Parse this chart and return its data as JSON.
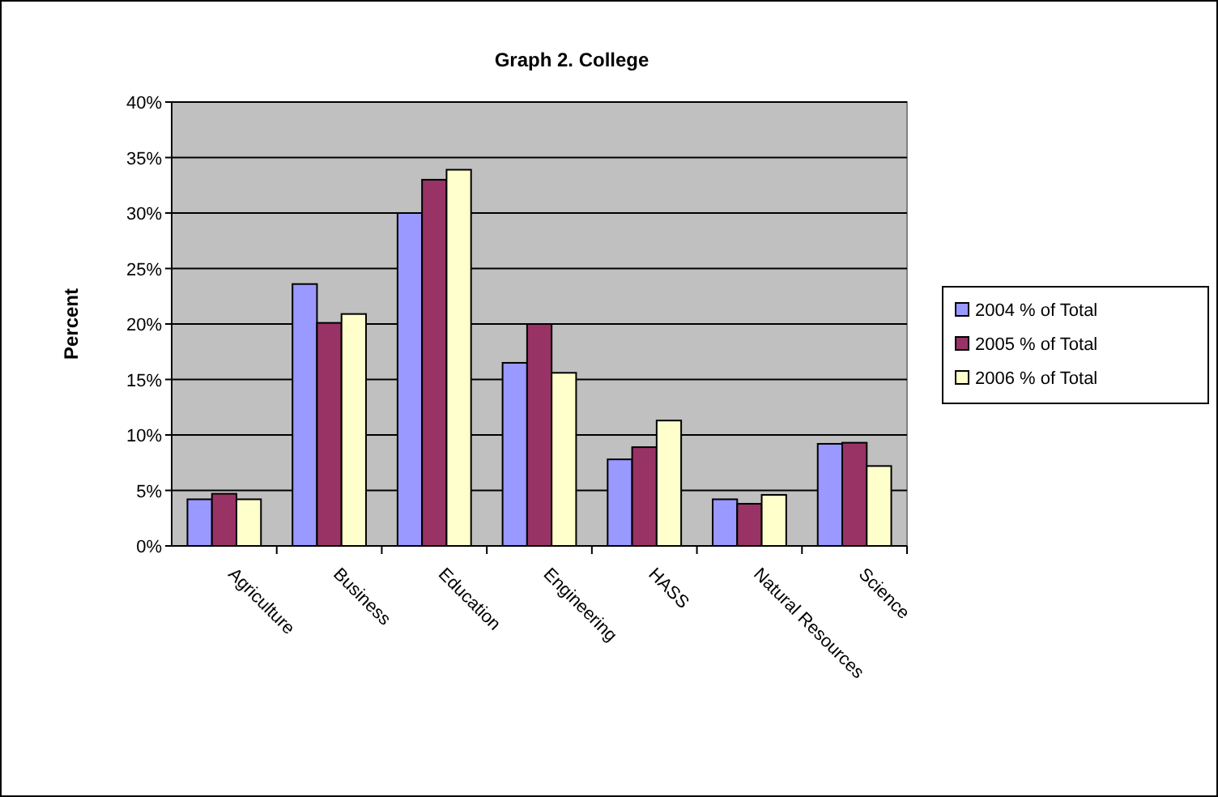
{
  "chart_data": {
    "type": "bar",
    "title": "Graph 2.  College",
    "ylabel": "Percent",
    "categories": [
      "Agriculture",
      "Business",
      "Education",
      "Engineering",
      "HASS",
      "Natural Resources",
      "Science"
    ],
    "series": [
      {
        "name": "2004 % of Total",
        "color": "#9999ff",
        "values": [
          4.2,
          23.6,
          30.0,
          16.5,
          7.8,
          4.2,
          9.2
        ]
      },
      {
        "name": "2005 % of Total",
        "color": "#993366",
        "values": [
          4.7,
          20.1,
          33.0,
          20.0,
          8.9,
          3.8,
          9.3
        ]
      },
      {
        "name": "2006 % of Total",
        "color": "#ffffcc",
        "values": [
          4.2,
          20.9,
          33.9,
          15.6,
          11.3,
          4.6,
          7.2
        ]
      }
    ],
    "ylim": [
      0,
      40
    ],
    "yticks": [
      {
        "value": 0,
        "label": "0%"
      },
      {
        "value": 5,
        "label": "5%"
      },
      {
        "value": 10,
        "label": "10%"
      },
      {
        "value": 15,
        "label": "15%"
      },
      {
        "value": 20,
        "label": "20%"
      },
      {
        "value": 25,
        "label": "25%"
      },
      {
        "value": 30,
        "label": "30%"
      },
      {
        "value": 35,
        "label": "35%"
      },
      {
        "value": 40,
        "label": "40%"
      }
    ],
    "grid": "y",
    "legend": "right"
  }
}
